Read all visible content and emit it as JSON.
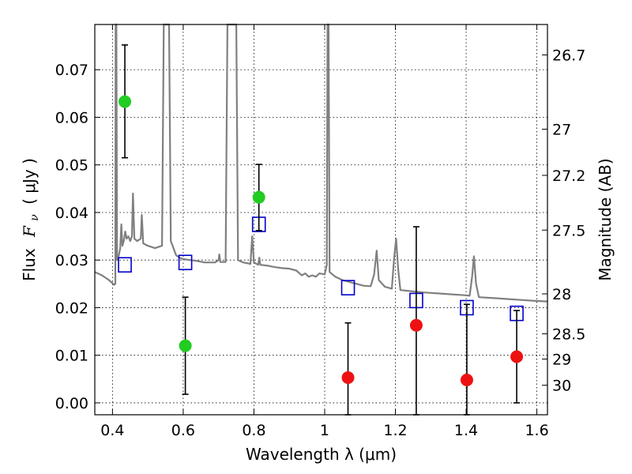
{
  "chart_data": {
    "type": "scatter",
    "xlabel": "Wavelength  λ (μm)",
    "ylabel_text": "Flux",
    "ylabel_symbol": "F",
    "ylabel_sub": "ν",
    "ylabel_unit": "( μJy )",
    "y2label": "Magnitude (AB)",
    "xlim": [
      0.35,
      1.63
    ],
    "ylim": [
      -0.0025,
      0.0795
    ],
    "grid": true,
    "xticks": [
      {
        "value": 0.4,
        "label": "0.4"
      },
      {
        "value": 0.6,
        "label": "0.6"
      },
      {
        "value": 0.8,
        "label": "0.8"
      },
      {
        "value": 1.0,
        "label": "1"
      },
      {
        "value": 1.2,
        "label": "1.2"
      },
      {
        "value": 1.4,
        "label": "1.4"
      },
      {
        "value": 1.6,
        "label": "1.6"
      }
    ],
    "yticks": [
      {
        "value": 0.0,
        "label": "0.00"
      },
      {
        "value": 0.01,
        "label": "0.01"
      },
      {
        "value": 0.02,
        "label": "0.02"
      },
      {
        "value": 0.03,
        "label": "0.03"
      },
      {
        "value": 0.04,
        "label": "0.04"
      },
      {
        "value": 0.05,
        "label": "0.05"
      },
      {
        "value": 0.06,
        "label": "0.06"
      },
      {
        "value": 0.07,
        "label": "0.07"
      }
    ],
    "magnitude_ticks": [
      {
        "flux": 0.0731,
        "label": "26.7"
      },
      {
        "flux": 0.0575,
        "label": "27"
      },
      {
        "flux": 0.0478,
        "label": "27.2"
      },
      {
        "flux": 0.0363,
        "label": "27.5"
      },
      {
        "flux": 0.0229,
        "label": "28"
      },
      {
        "flux": 0.0145,
        "label": "28.5"
      },
      {
        "flux": 0.0092,
        "label": "29"
      },
      {
        "flux": 0.0037,
        "label": "30"
      }
    ],
    "series": [
      {
        "kind": "points-with-errorbars",
        "color": "#22cc22",
        "points": [
          {
            "x": 0.435,
            "y": 0.0633,
            "lo": 0.0515,
            "hi": 0.0752
          },
          {
            "x": 0.606,
            "y": 0.012,
            "lo": 0.0018,
            "hi": 0.0222
          },
          {
            "x": 0.814,
            "y": 0.0432,
            "lo": 0.0362,
            "hi": 0.0501
          }
        ]
      },
      {
        "kind": "points-with-errorbars",
        "color": "#ee1111",
        "points": [
          {
            "x": 1.066,
            "y": 0.0053,
            "lo": -0.0025,
            "hi": 0.0168
          },
          {
            "x": 1.259,
            "y": 0.0163,
            "lo": -0.0025,
            "hi": 0.037
          },
          {
            "x": 1.402,
            "y": 0.0048,
            "lo": -0.0025,
            "hi": 0.0207
          },
          {
            "x": 1.543,
            "y": 0.0097,
            "lo": 0.0,
            "hi": 0.0194
          }
        ]
      },
      {
        "kind": "model-photometry",
        "color": "#0000cc",
        "points": [
          {
            "x": 0.435,
            "y": 0.029
          },
          {
            "x": 0.606,
            "y": 0.0295
          },
          {
            "x": 0.814,
            "y": 0.0375
          },
          {
            "x": 1.066,
            "y": 0.0242
          },
          {
            "x": 1.259,
            "y": 0.0215
          },
          {
            "x": 1.402,
            "y": 0.02
          },
          {
            "x": 1.543,
            "y": 0.0188
          }
        ]
      },
      {
        "kind": "spectrum",
        "color": "#808080",
        "points": [
          [
            0.35,
            0.0275
          ],
          [
            0.37,
            0.0268
          ],
          [
            0.39,
            0.0258
          ],
          [
            0.405,
            0.0248
          ],
          [
            0.408,
            0.025
          ],
          [
            0.409,
            0.0795
          ],
          [
            0.411,
            0.0795
          ],
          [
            0.413,
            0.03
          ],
          [
            0.418,
            0.031
          ],
          [
            0.422,
            0.0325
          ],
          [
            0.425,
            0.0375
          ],
          [
            0.428,
            0.033
          ],
          [
            0.432,
            0.034
          ],
          [
            0.436,
            0.036
          ],
          [
            0.44,
            0.0345
          ],
          [
            0.445,
            0.035
          ],
          [
            0.45,
            0.034
          ],
          [
            0.455,
            0.035
          ],
          [
            0.458,
            0.044
          ],
          [
            0.462,
            0.0345
          ],
          [
            0.47,
            0.034
          ],
          [
            0.48,
            0.0345
          ],
          [
            0.483,
            0.0395
          ],
          [
            0.487,
            0.0335
          ],
          [
            0.5,
            0.033
          ],
          [
            0.52,
            0.0325
          ],
          [
            0.54,
            0.033
          ],
          [
            0.545,
            0.0795
          ],
          [
            0.55,
            0.0795
          ],
          [
            0.555,
            0.0795
          ],
          [
            0.56,
            0.0795
          ],
          [
            0.565,
            0.034
          ],
          [
            0.57,
            0.033
          ],
          [
            0.575,
            0.032
          ],
          [
            0.58,
            0.031
          ],
          [
            0.59,
            0.0305
          ],
          [
            0.6,
            0.0302
          ],
          [
            0.62,
            0.03
          ],
          [
            0.64,
            0.0298
          ],
          [
            0.66,
            0.0295
          ],
          [
            0.69,
            0.0295
          ],
          [
            0.7,
            0.03
          ],
          [
            0.702,
            0.0312
          ],
          [
            0.705,
            0.0296
          ],
          [
            0.72,
            0.0296
          ],
          [
            0.725,
            0.0795
          ],
          [
            0.73,
            0.0795
          ],
          [
            0.74,
            0.0795
          ],
          [
            0.75,
            0.0795
          ],
          [
            0.755,
            0.03
          ],
          [
            0.77,
            0.0295
          ],
          [
            0.79,
            0.0292
          ],
          [
            0.795,
            0.035
          ],
          [
            0.8,
            0.0295
          ],
          [
            0.812,
            0.029
          ],
          [
            0.815,
            0.0305
          ],
          [
            0.818,
            0.029
          ],
          [
            0.84,
            0.0288
          ],
          [
            0.86,
            0.0285
          ],
          [
            0.88,
            0.0283
          ],
          [
            0.9,
            0.0282
          ],
          [
            0.92,
            0.0278
          ],
          [
            0.935,
            0.0268
          ],
          [
            0.945,
            0.0272
          ],
          [
            0.955,
            0.0265
          ],
          [
            0.965,
            0.0268
          ],
          [
            0.975,
            0.0265
          ],
          [
            0.985,
            0.0272
          ],
          [
            1.0,
            0.027
          ],
          [
            1.006,
            0.029
          ],
          [
            1.008,
            0.0795
          ],
          [
            1.011,
            0.0795
          ],
          [
            1.014,
            0.0275
          ],
          [
            1.03,
            0.0265
          ],
          [
            1.05,
            0.0258
          ],
          [
            1.07,
            0.0254
          ],
          [
            1.09,
            0.025
          ],
          [
            1.11,
            0.0246
          ],
          [
            1.13,
            0.0245
          ],
          [
            1.14,
            0.027
          ],
          [
            1.147,
            0.032
          ],
          [
            1.153,
            0.0258
          ],
          [
            1.17,
            0.0244
          ],
          [
            1.19,
            0.024
          ],
          [
            1.196,
            0.03
          ],
          [
            1.202,
            0.0345
          ],
          [
            1.208,
            0.028
          ],
          [
            1.214,
            0.0237
          ],
          [
            1.24,
            0.0235
          ],
          [
            1.28,
            0.0232
          ],
          [
            1.32,
            0.023
          ],
          [
            1.36,
            0.0228
          ],
          [
            1.4,
            0.0226
          ],
          [
            1.41,
            0.0225
          ],
          [
            1.417,
            0.0265
          ],
          [
            1.422,
            0.0308
          ],
          [
            1.428,
            0.025
          ],
          [
            1.436,
            0.0222
          ],
          [
            1.48,
            0.022
          ],
          [
            1.52,
            0.0218
          ],
          [
            1.56,
            0.0216
          ],
          [
            1.6,
            0.0214
          ],
          [
            1.63,
            0.0213
          ]
        ]
      }
    ]
  }
}
